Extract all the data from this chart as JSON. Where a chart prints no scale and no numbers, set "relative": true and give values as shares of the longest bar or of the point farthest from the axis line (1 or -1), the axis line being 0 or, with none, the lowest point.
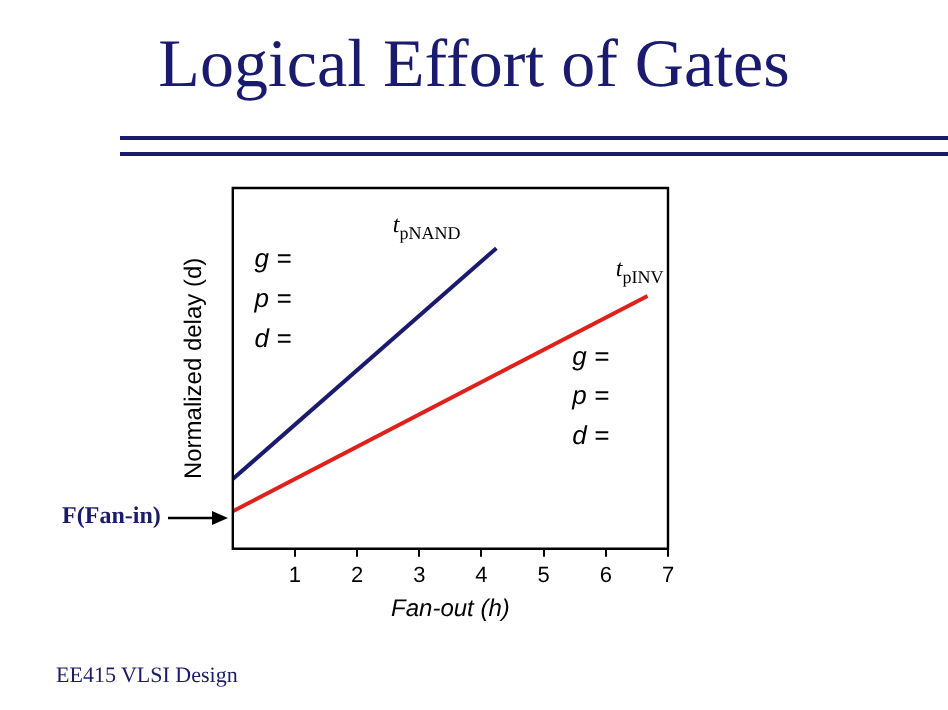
{
  "chart_data": {
    "type": "line",
    "title": "Logical Effort of Gates",
    "xlabel": "Fan-out (h)",
    "ylabel": "Normalized delay (d)",
    "relative": true,
    "xlim": [
      0,
      7
    ],
    "xticks": [
      1,
      2,
      3,
      4,
      5,
      6,
      7
    ],
    "grid": false,
    "legend": false,
    "marker": "none",
    "line_style": "solid",
    "series": [
      {
        "name": "t$_{pNAND}$",
        "color": "#1a1a6e",
        "x": [
          0,
          4.24
        ],
        "values": [
          0.232,
          1
        ]
      },
      {
        "name": "t$_{pINV}$",
        "color": "#e0201a",
        "x": [
          0,
          6.67
        ],
        "values": [
          0.125,
          0.841
        ]
      }
    ],
    "annotations": [
      "g =",
      "p =",
      "d =",
      "g =",
      "p =",
      "d =",
      {
        "text": "F(Fan-in)",
        "x": 0,
        "y": 0.125
      },
      "EE415 VLSI Design"
    ]
  }
}
